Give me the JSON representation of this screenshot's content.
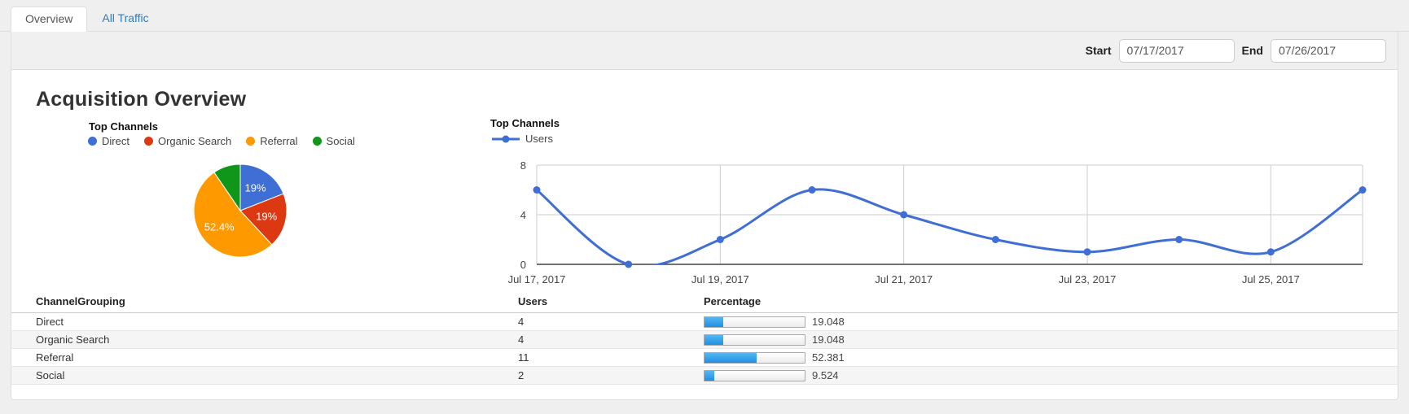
{
  "tabs": [
    {
      "label": "Overview",
      "active": true
    },
    {
      "label": "All Traffic",
      "active": false
    }
  ],
  "toolbar": {
    "start_label": "Start",
    "start_value": "07/17/2017",
    "end_label": "End",
    "end_value": "07/26/2017"
  },
  "page": {
    "title": "Acquisition Overview"
  },
  "colors": {
    "blue": "#3F6ED5",
    "red": "#DC3912",
    "orange": "#FF9900",
    "green": "#109618",
    "link": "#337ab7",
    "bar_blue": "#1f8fe4",
    "grid": "#cccccc",
    "axis": "#424242"
  },
  "chart_data": [
    {
      "type": "pie",
      "title": "Top Channels",
      "legend_position": "top",
      "labels": [
        "Direct",
        "Organic Search",
        "Referral",
        "Social"
      ],
      "values": [
        19.048,
        19.048,
        52.381,
        9.524
      ],
      "slice_labels": [
        "19%",
        "19%",
        "52.4%",
        ""
      ],
      "colors": [
        "#3F6ED5",
        "#DC3912",
        "#FF9900",
        "#109618"
      ]
    },
    {
      "type": "line",
      "title": "Top Channels",
      "legend": [
        "Users"
      ],
      "series": [
        {
          "name": "Users",
          "color": "#3F6ED5",
          "values": [
            6,
            0,
            2,
            6,
            4,
            2,
            1,
            2,
            1,
            6
          ]
        }
      ],
      "x": [
        "Jul 17, 2017",
        "Jul 18, 2017",
        "Jul 19, 2017",
        "Jul 20, 2017",
        "Jul 21, 2017",
        "Jul 22, 2017",
        "Jul 23, 2017",
        "Jul 24, 2017",
        "Jul 25, 2017",
        "Jul 26, 2017"
      ],
      "x_tick_indices": [
        0,
        2,
        4,
        6,
        8
      ],
      "x_tick_labels": [
        "Jul 17, 2017",
        "Jul 19, 2017",
        "Jul 21, 2017",
        "Jul 23, 2017",
        "Jul 25, 2017"
      ],
      "y_ticks": [
        0,
        4,
        8
      ],
      "ylim": [
        0,
        8
      ],
      "curve": "smooth",
      "grid": true,
      "legend_position": "top"
    }
  ],
  "table": {
    "columns": [
      "ChannelGrouping",
      "Users",
      "Percentage"
    ],
    "rows": [
      {
        "channel": "Direct",
        "users": "4",
        "percentage": 19.048,
        "percentage_label": "19.048"
      },
      {
        "channel": "Organic Search",
        "users": "4",
        "percentage": 19.048,
        "percentage_label": "19.048"
      },
      {
        "channel": "Referral",
        "users": "11",
        "percentage": 52.381,
        "percentage_label": "52.381"
      },
      {
        "channel": "Social",
        "users": "2",
        "percentage": 9.524,
        "percentage_label": "9.524"
      }
    ]
  }
}
